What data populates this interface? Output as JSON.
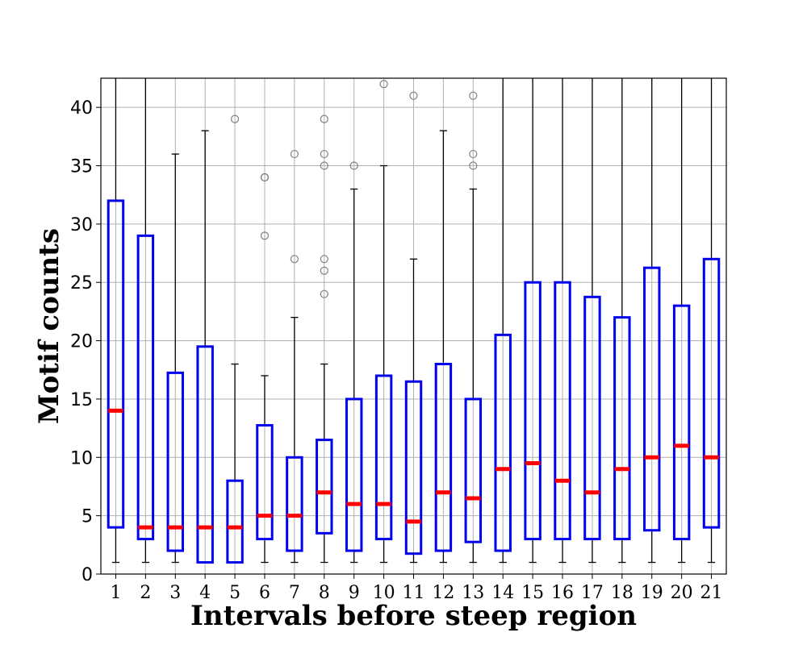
{
  "chart_data": {
    "type": "box",
    "xlabel": "Intervals before steep region",
    "ylabel": "Motif counts",
    "ylim": [
      0,
      42.5
    ],
    "yticks": [
      0,
      5,
      10,
      15,
      20,
      25,
      30,
      35,
      40
    ],
    "categories": [
      "1",
      "2",
      "3",
      "4",
      "5",
      "6",
      "7",
      "8",
      "9",
      "10",
      "11",
      "12",
      "13",
      "14",
      "15",
      "16",
      "17",
      "18",
      "19",
      "20",
      "21"
    ],
    "grid": true,
    "colors": {
      "box": "#0000ee",
      "median": "#ff0000",
      "whisker": "#000000",
      "grid": "#b0b0b0",
      "flier": "#808080"
    },
    "boxes": [
      {
        "q1": 4,
        "median": 14,
        "q3": 32,
        "whislo": 1,
        "whishi": 42.5,
        "fliers": []
      },
      {
        "q1": 3,
        "median": 4,
        "q3": 29,
        "whislo": 1,
        "whishi": 42.5,
        "fliers": []
      },
      {
        "q1": 2,
        "median": 4,
        "q3": 17.25,
        "whislo": 1,
        "whishi": 36,
        "fliers": []
      },
      {
        "q1": 1,
        "median": 4,
        "q3": 19.5,
        "whislo": 1,
        "whishi": 38,
        "fliers": []
      },
      {
        "q1": 1,
        "median": 4,
        "q3": 8,
        "whislo": 1,
        "whishi": 18,
        "fliers": [
          39
        ]
      },
      {
        "q1": 3,
        "median": 5,
        "q3": 12.75,
        "whislo": 1,
        "whishi": 17,
        "fliers": [
          29,
          34,
          34
        ]
      },
      {
        "q1": 2,
        "median": 5,
        "q3": 10,
        "whislo": 1,
        "whishi": 22,
        "fliers": [
          27,
          36
        ]
      },
      {
        "q1": 3.5,
        "median": 7,
        "q3": 11.5,
        "whislo": 1,
        "whishi": 18,
        "fliers": [
          24,
          26,
          27,
          35,
          36,
          39
        ]
      },
      {
        "q1": 2,
        "median": 6,
        "q3": 15,
        "whislo": 1,
        "whishi": 33,
        "fliers": [
          35
        ]
      },
      {
        "q1": 3,
        "median": 6,
        "q3": 17,
        "whislo": 1,
        "whishi": 35,
        "fliers": [
          42
        ]
      },
      {
        "q1": 1.75,
        "median": 4.5,
        "q3": 16.5,
        "whislo": 1,
        "whishi": 27,
        "fliers": [
          41
        ]
      },
      {
        "q1": 2,
        "median": 7,
        "q3": 18,
        "whislo": 1,
        "whishi": 38,
        "fliers": []
      },
      {
        "q1": 2.75,
        "median": 6.5,
        "q3": 15,
        "whislo": 1,
        "whishi": 33,
        "fliers": [
          35,
          36,
          41
        ]
      },
      {
        "q1": 2,
        "median": 9,
        "q3": 20.5,
        "whislo": 1,
        "whishi": 42.5,
        "fliers": []
      },
      {
        "q1": 3,
        "median": 9.5,
        "q3": 25,
        "whislo": 1,
        "whishi": 42.5,
        "fliers": []
      },
      {
        "q1": 3,
        "median": 8,
        "q3": 25,
        "whislo": 1,
        "whishi": 42.5,
        "fliers": []
      },
      {
        "q1": 3,
        "median": 7,
        "q3": 23.75,
        "whislo": 1,
        "whishi": 42.5,
        "fliers": []
      },
      {
        "q1": 3,
        "median": 9,
        "q3": 22,
        "whislo": 1,
        "whishi": 42.5,
        "fliers": []
      },
      {
        "q1": 3.75,
        "median": 10,
        "q3": 26.25,
        "whislo": 1,
        "whishi": 42.5,
        "fliers": []
      },
      {
        "q1": 3,
        "median": 11,
        "q3": 23,
        "whislo": 1,
        "whishi": 42.5,
        "fliers": []
      },
      {
        "q1": 4,
        "median": 10,
        "q3": 27,
        "whislo": 1,
        "whishi": 42.5,
        "fliers": []
      }
    ]
  }
}
